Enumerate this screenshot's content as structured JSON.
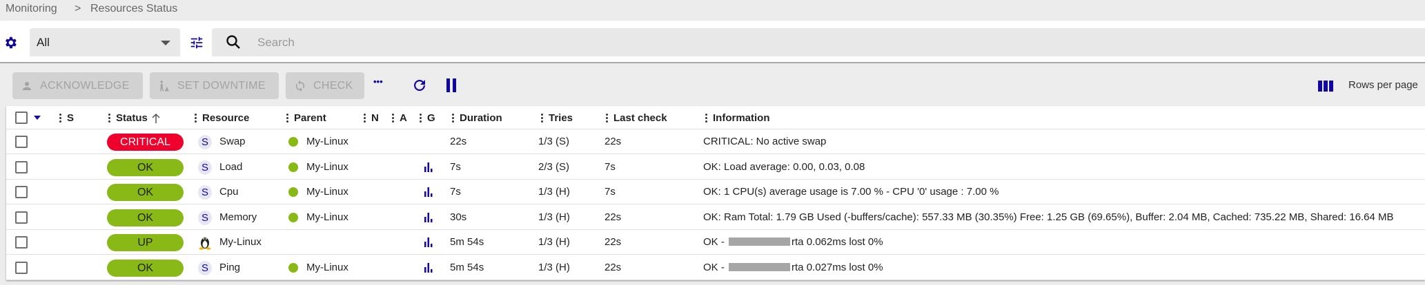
{
  "breadcrumb": {
    "items": [
      "Monitoring",
      "Resources Status"
    ],
    "separator": ">"
  },
  "filter": {
    "selected": "All",
    "search_placeholder": "Search",
    "search_value": ""
  },
  "toolbar": {
    "acknowledge": "ACKNOWLEDGE",
    "set_downtime": "SET DOWNTIME",
    "check": "CHECK",
    "more": "•••",
    "rows_per_page": "Rows per page"
  },
  "colors": {
    "accent": "#10069f",
    "ok": "#88b917",
    "critical": "#f0002d",
    "disabled": "#d2d2d2"
  },
  "columns": {
    "s": "S",
    "status": "Status",
    "resource": "Resource",
    "parent": "Parent",
    "n": "N",
    "a": "A",
    "g": "G",
    "duration": "Duration",
    "tries": "Tries",
    "last_check": "Last check",
    "information": "Information"
  },
  "rows": [
    {
      "status": "CRITICAL",
      "type": "service",
      "avatar": "S",
      "resource": "Swap",
      "parent": "My-Linux",
      "graph": false,
      "duration": "22s",
      "tries": "1/3 (S)",
      "last_check": "22s",
      "info": "CRITICAL: No active swap",
      "info_suffix": ""
    },
    {
      "status": "OK",
      "type": "service",
      "avatar": "S",
      "resource": "Load",
      "parent": "My-Linux",
      "graph": true,
      "duration": "7s",
      "tries": "2/3 (S)",
      "last_check": "7s",
      "info": "OK: Load average: 0.00, 0.03, 0.08",
      "info_suffix": ""
    },
    {
      "status": "OK",
      "type": "service",
      "avatar": "S",
      "resource": "Cpu",
      "parent": "My-Linux",
      "graph": true,
      "duration": "7s",
      "tries": "1/3 (H)",
      "last_check": "7s",
      "info": "OK: 1 CPU(s) average usage is 7.00 % - CPU '0' usage : 7.00 %",
      "info_suffix": ""
    },
    {
      "status": "OK",
      "type": "service",
      "avatar": "S",
      "resource": "Memory",
      "parent": "My-Linux",
      "graph": true,
      "duration": "30s",
      "tries": "1/3 (H)",
      "last_check": "22s",
      "info": "OK: Ram Total: 1.79 GB Used (-buffers/cache): 557.33 MB (30.35%) Free: 1.25 GB (69.65%), Buffer: 2.04 MB, Cached: 735.22 MB, Shared: 16.64 MB",
      "info_suffix": ""
    },
    {
      "status": "UP",
      "type": "host",
      "avatar": "",
      "resource": "My-Linux",
      "parent": "",
      "graph": true,
      "duration": "5m 54s",
      "tries": "1/3 (H)",
      "last_check": "22s",
      "info": "OK -",
      "info_suffix": "rta 0.062ms lost 0%",
      "redacted": true
    },
    {
      "status": "OK",
      "type": "service",
      "avatar": "S",
      "resource": "Ping",
      "parent": "My-Linux",
      "graph": true,
      "duration": "5m 54s",
      "tries": "1/3 (H)",
      "last_check": "22s",
      "info": "OK -",
      "info_suffix": "rta 0.027ms lost 0%",
      "redacted": true
    }
  ]
}
